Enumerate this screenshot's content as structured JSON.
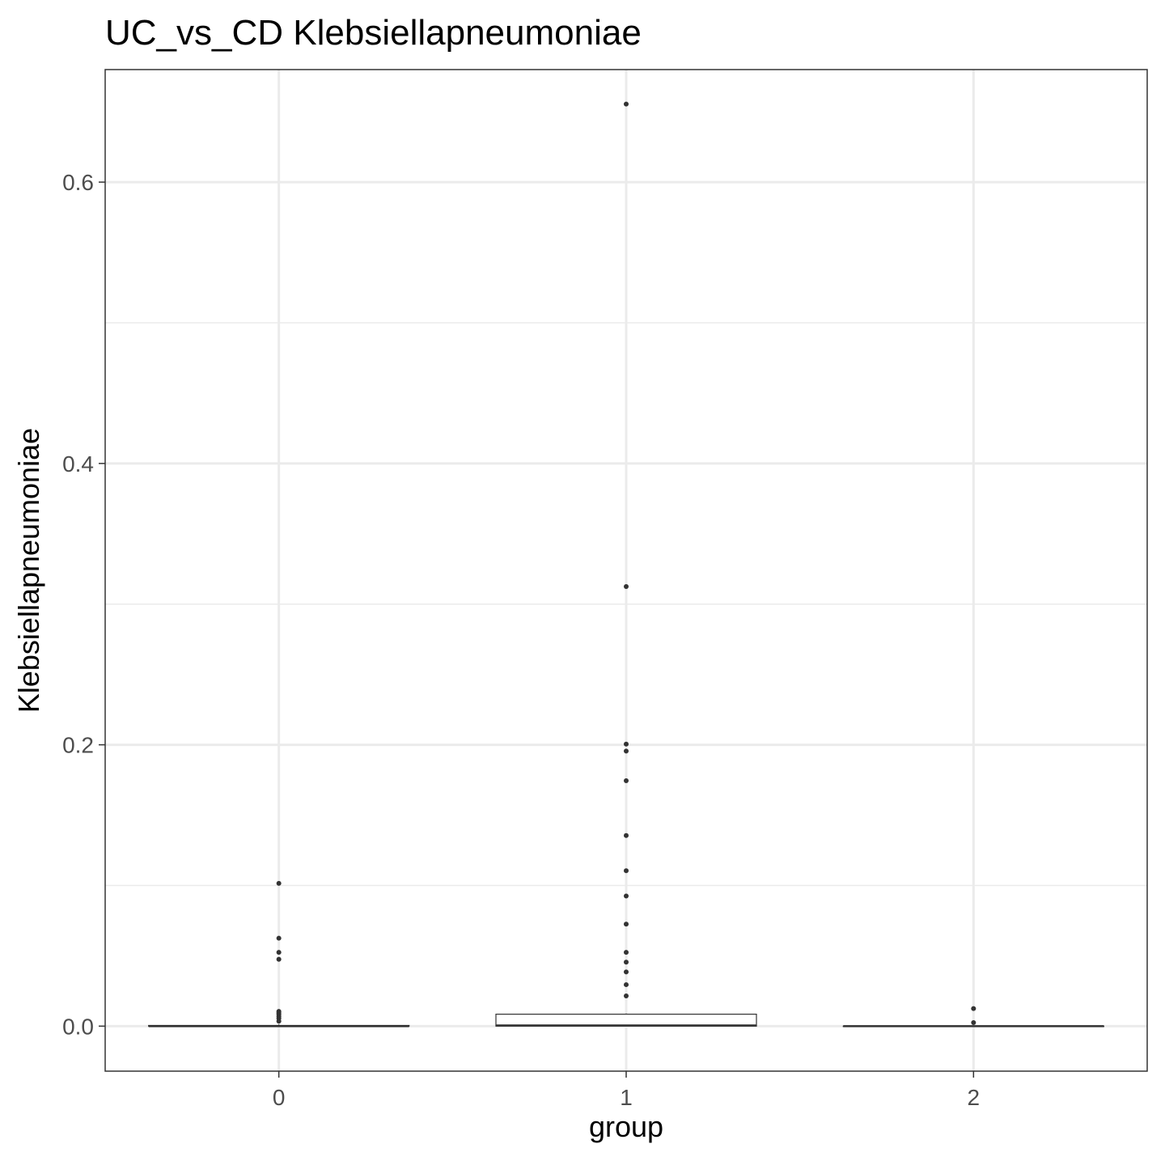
{
  "chart_data": {
    "type": "boxplot",
    "title": "UC_vs_CD Klebsiellapneumoniae",
    "xlabel": "group",
    "ylabel": "Klebsiellapneumoniae",
    "categories": [
      "0",
      "1",
      "2"
    ],
    "ylim": [
      -0.032,
      0.68
    ],
    "yticks": [
      0.0,
      0.2,
      0.4,
      0.6
    ],
    "ytick_labels": [
      "0.0",
      "0.2",
      "0.4",
      "0.6"
    ],
    "grid": true,
    "colors": {
      "box_fill": "#ffffff",
      "box_stroke": "#333333",
      "point": "#333333",
      "grid": "#ebebeb",
      "panel_border": "#333333"
    },
    "boxes": [
      {
        "category": "0",
        "min": 0.0,
        "q1": 0.0,
        "median": 0.0,
        "q3": 0.0005,
        "max": 0.0012,
        "outliers": [
          0.1015,
          0.0625,
          0.0525,
          0.0475,
          0.0105,
          0.0095,
          0.0085,
          0.007,
          0.0055,
          0.0035
        ]
      },
      {
        "category": "1",
        "min": 0.0,
        "q1": 0.0,
        "median": 0.0005,
        "q3": 0.0085,
        "max": 0.009,
        "outliers": [
          0.6555,
          0.3125,
          0.2005,
          0.1955,
          0.1745,
          0.1355,
          0.1105,
          0.0925,
          0.0725,
          0.0525,
          0.0455,
          0.0385,
          0.0295,
          0.0215
        ]
      },
      {
        "category": "2",
        "min": 0.0,
        "q1": 0.0,
        "median": 0.0,
        "q3": 0.0,
        "max": 0.0,
        "outliers": [
          0.0125,
          0.0025
        ]
      }
    ]
  }
}
